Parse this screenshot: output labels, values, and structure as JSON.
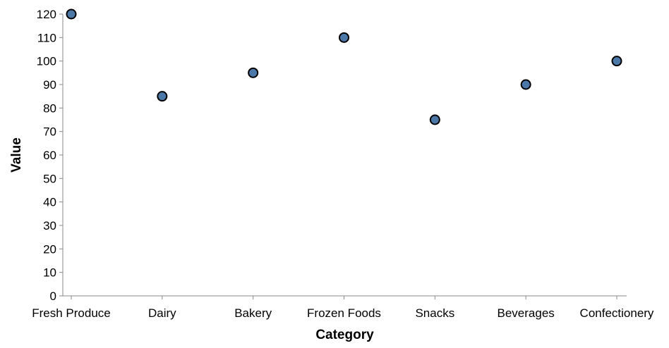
{
  "chart_data": {
    "type": "scatter",
    "title": "",
    "xlabel": "Category",
    "ylabel": "Value",
    "categories": [
      "Fresh Produce",
      "Dairy",
      "Bakery",
      "Frozen Foods",
      "Snacks",
      "Beverages",
      "Confectionery"
    ],
    "values": [
      120,
      85,
      95,
      110,
      75,
      90,
      100
    ],
    "ylim": [
      0,
      120
    ],
    "yticks": [
      0,
      10,
      20,
      30,
      40,
      50,
      60,
      70,
      80,
      90,
      100,
      110,
      120
    ],
    "grid": false,
    "legend": "none",
    "colors": {
      "point_fill": "#4c78a8",
      "point_stroke": "#000000",
      "axis": "#888888"
    }
  }
}
